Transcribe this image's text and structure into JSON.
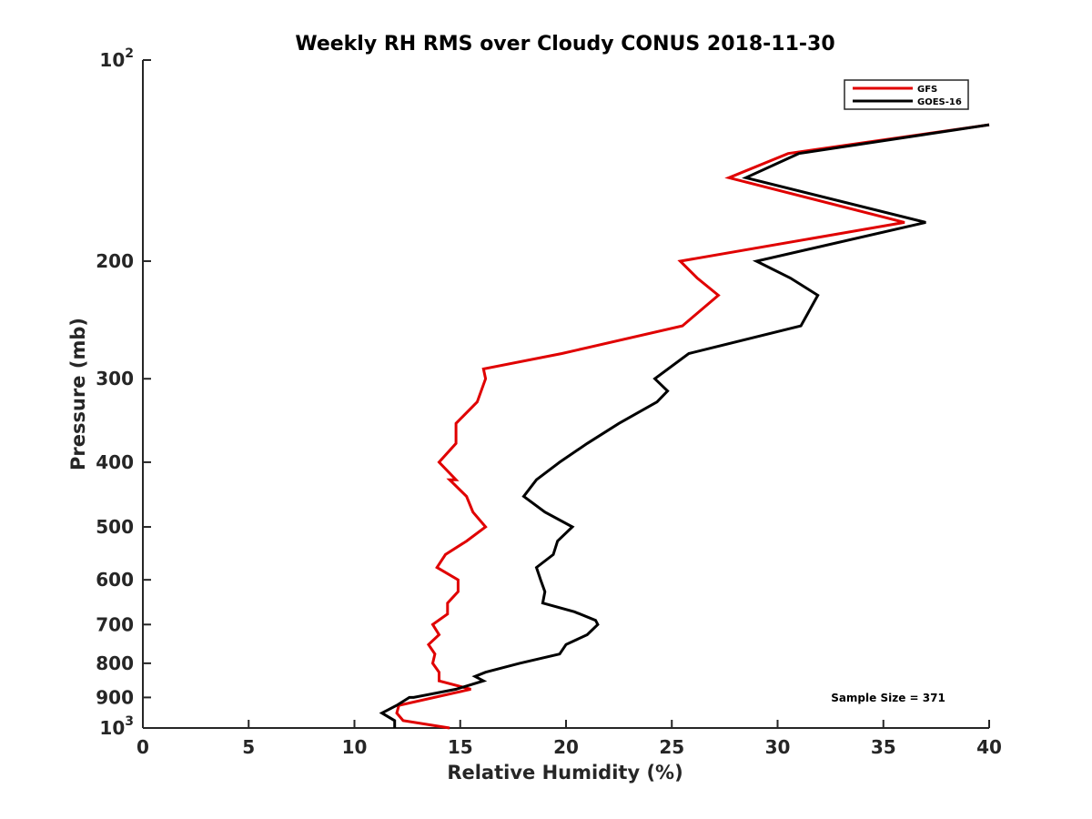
{
  "chart_data": {
    "type": "line",
    "title": "Weekly RH RMS over Cloudy CONUS 2018-11-30",
    "xlabel": "Relative Humidity (%)",
    "ylabel": "Pressure (mb)",
    "xlim": [
      0,
      40
    ],
    "ylim": [
      100,
      1000
    ],
    "y_scale": "log",
    "y_reversed": true,
    "x_ticks": [
      "0",
      "5",
      "10",
      "15",
      "20",
      "25",
      "30",
      "35",
      "40"
    ],
    "y_ticks": [
      {
        "value": 100,
        "base": "10",
        "exp": "2"
      },
      {
        "value": 200,
        "label": "200"
      },
      {
        "value": 300,
        "label": "300"
      },
      {
        "value": 400,
        "label": "400"
      },
      {
        "value": 500,
        "label": "500"
      },
      {
        "value": 600,
        "label": "600"
      },
      {
        "value": 700,
        "label": "700"
      },
      {
        "value": 800,
        "label": "800"
      },
      {
        "value": 900,
        "label": "900"
      },
      {
        "value": 1000,
        "base": "10",
        "exp": "3"
      }
    ],
    "legend_position": "top-right",
    "annotation": "Sample Size = 371",
    "series": [
      {
        "name": "GFS",
        "color": "#e00000",
        "points": [
          [
            14.5,
            1000
          ],
          [
            12.3,
            975
          ],
          [
            12.0,
            950
          ],
          [
            12.1,
            925
          ],
          [
            15.5,
            875
          ],
          [
            14.0,
            850
          ],
          [
            14.0,
            825
          ],
          [
            13.7,
            800
          ],
          [
            13.8,
            775
          ],
          [
            13.5,
            750
          ],
          [
            14.0,
            725
          ],
          [
            13.7,
            700
          ],
          [
            14.4,
            675
          ],
          [
            14.4,
            650
          ],
          [
            14.9,
            625
          ],
          [
            14.9,
            600
          ],
          [
            13.9,
            575
          ],
          [
            14.3,
            550
          ],
          [
            15.3,
            525
          ],
          [
            16.2,
            500
          ],
          [
            15.6,
            475
          ],
          [
            15.3,
            450
          ],
          [
            14.5,
            425
          ],
          [
            14.8,
            425
          ],
          [
            14.0,
            400
          ],
          [
            14.8,
            375
          ],
          [
            14.8,
            350
          ],
          [
            15.8,
            325
          ],
          [
            16.2,
            300
          ],
          [
            16.1,
            290
          ],
          [
            19.8,
            275
          ],
          [
            25.5,
            250
          ],
          [
            27.2,
            225
          ],
          [
            26.2,
            212
          ],
          [
            25.4,
            200
          ],
          [
            36.0,
            175
          ],
          [
            27.7,
            150
          ],
          [
            30.5,
            138
          ],
          [
            40.0,
            125
          ]
        ]
      },
      {
        "name": "GOES-16",
        "color": "#000000",
        "points": [
          [
            11.9,
            1000
          ],
          [
            11.9,
            975
          ],
          [
            11.3,
            950
          ],
          [
            12.0,
            925
          ],
          [
            12.6,
            900
          ],
          [
            12.8,
            900
          ],
          [
            14.8,
            875
          ],
          [
            16.1,
            850
          ],
          [
            15.7,
            837
          ],
          [
            16.2,
            825
          ],
          [
            17.8,
            800
          ],
          [
            19.7,
            775
          ],
          [
            20.0,
            750
          ],
          [
            21.0,
            725
          ],
          [
            21.5,
            700
          ],
          [
            21.4,
            690
          ],
          [
            20.4,
            670
          ],
          [
            18.9,
            650
          ],
          [
            19.0,
            625
          ],
          [
            18.8,
            600
          ],
          [
            18.6,
            575
          ],
          [
            19.4,
            550
          ],
          [
            19.6,
            525
          ],
          [
            20.3,
            500
          ],
          [
            19.0,
            475
          ],
          [
            18.0,
            450
          ],
          [
            18.6,
            425
          ],
          [
            19.7,
            400
          ],
          [
            21.0,
            375
          ],
          [
            22.5,
            350
          ],
          [
            24.3,
            325
          ],
          [
            24.8,
            313
          ],
          [
            24.2,
            300
          ],
          [
            25.8,
            275
          ],
          [
            31.1,
            250
          ],
          [
            31.9,
            225
          ],
          [
            30.6,
            212
          ],
          [
            29.0,
            200
          ],
          [
            37.0,
            175
          ],
          [
            28.5,
            150
          ],
          [
            31.0,
            138
          ],
          [
            40.0,
            125
          ]
        ]
      }
    ]
  }
}
